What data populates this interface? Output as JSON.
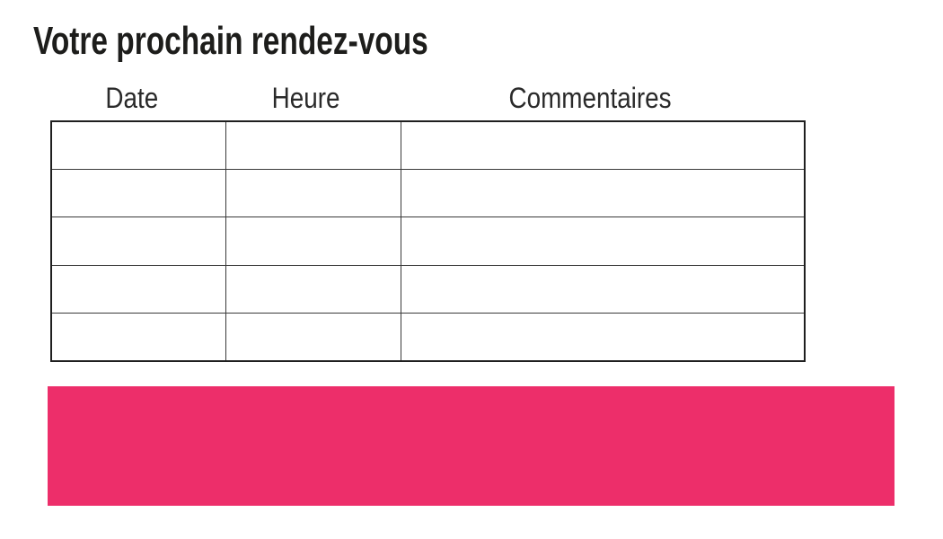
{
  "title": "Votre prochain rendez-vous",
  "table": {
    "headers": [
      "Date",
      "Heure",
      "Commentaires"
    ],
    "row_count": 5,
    "columns": [
      "date",
      "heure",
      "commentaires"
    ],
    "cell_values": [
      [
        "",
        "",
        ""
      ],
      [
        "",
        "",
        ""
      ],
      [
        "",
        "",
        ""
      ],
      [
        "",
        "",
        ""
      ],
      [
        "",
        "",
        ""
      ]
    ],
    "border_color": "#3a3a3a",
    "outer_border_color": "#1f1f1f"
  },
  "accent_bar": {
    "color": "#ED2E6A"
  },
  "colors": {
    "title_text": "#1d1d1b",
    "header_text": "#2a2a2a",
    "background": "#ffffff"
  }
}
